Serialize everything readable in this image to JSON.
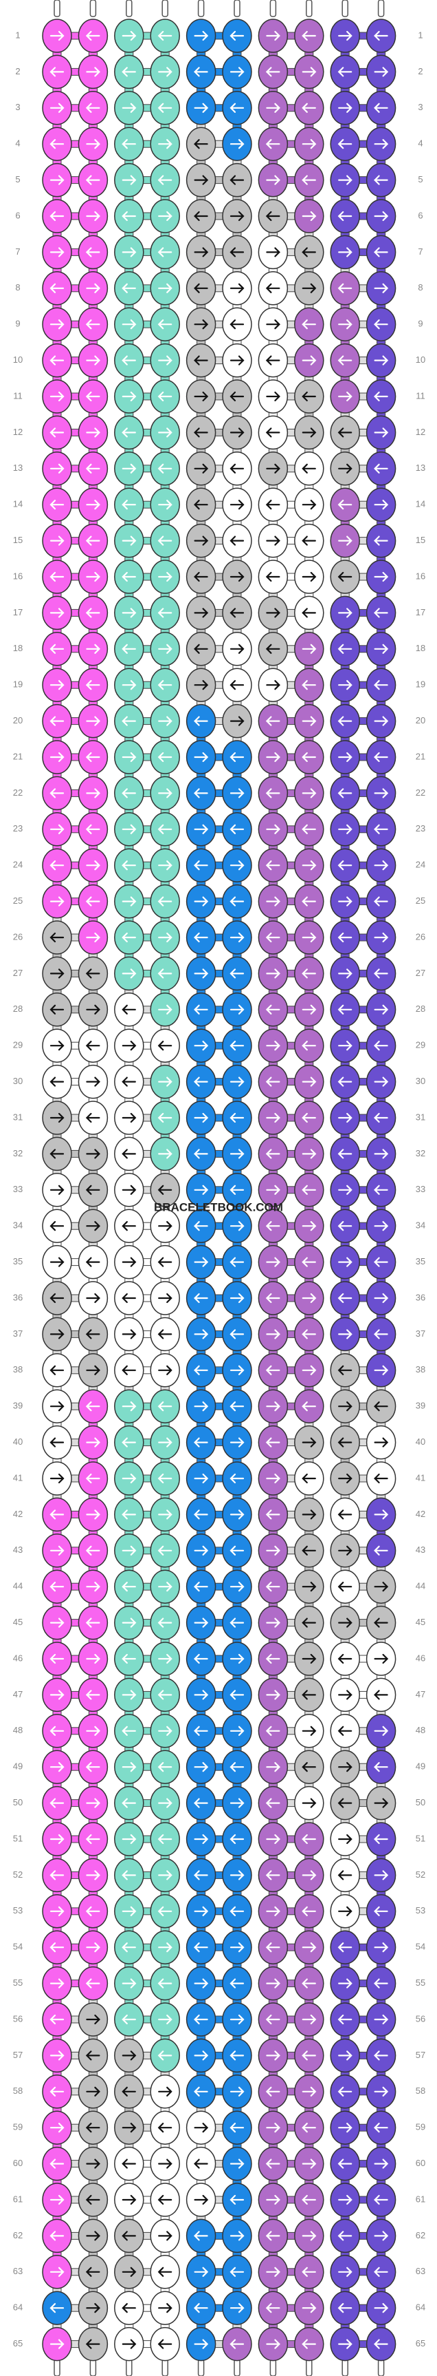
{
  "rows": [
    1,
    2,
    3,
    4,
    5,
    6,
    7,
    8,
    9,
    10,
    11,
    12,
    13,
    14,
    15,
    16,
    17,
    18,
    19,
    20,
    21,
    22,
    23,
    24,
    25,
    26,
    27,
    28,
    29,
    30,
    31,
    32,
    33,
    34,
    35,
    36,
    37,
    38,
    39,
    40,
    41,
    42,
    43,
    44,
    45,
    46,
    47,
    48,
    49,
    50,
    51,
    52,
    53,
    54,
    55,
    56,
    57,
    58,
    59,
    60,
    61,
    62,
    63,
    64,
    65
  ],
  "watermark": "BRACELETBOOK.COM",
  "knots": [
    "PPTTBBLLVV",
    "PPTTBBLLVV",
    "PPTTBBLLVV",
    "PPTTGBLLVV",
    "PPTTGGLLVV",
    "PPTTGGGLVV",
    "PPTTGGWGVV",
    "PPTTGWWGLV",
    "PPTTGWWLLV",
    "PPTTGWWLLV",
    "PPTTGGWGLV",
    "PPTTGGWGGV",
    "PPTTGWGWGV",
    "PPTTGWWWLV",
    "PPTTGWWWLV",
    "PPTTGGWWGV",
    "PPTTGGGWVV",
    "PPTTGWGLVV",
    "PPTTGWWLVV",
    "PPTTBGLLVV",
    "PPTTBBLLVV",
    "PPTTBBLLVV",
    "PPTTBBLLVV",
    "PPTTBBLLVV",
    "PPTTBBLLVV",
    "GPTTBBLLVV",
    "GGTTBBLLVV",
    "GGWTBBLLVV",
    "WWWWBBLLVV",
    "WWWTBBLLVV",
    "GWWTBBLLVV",
    "GGWTBBLLVV",
    "WGWGBBLLVV",
    "WGWWBBLLVV",
    "WWWWBBLLVV",
    "GWWWBBLLVV",
    "GGWWBBLLVV",
    "WGWWBBLLGV",
    "WPTTBBLLGG",
    "WPTTBBLGGW",
    "WPTTBBLWGW",
    "PPTTBBLGWV",
    "PPTTBBLGGV",
    "PPTTBBLGWG",
    "PPTTBBLGGG",
    "PPTTBBLGWW",
    "PPTTBBLGWW",
    "PPTTBBLWWV",
    "PPTTBBLGGV",
    "PPTTBBLWGG",
    "PPTTBBLLWV",
    "PPTTBBLLWV",
    "PPTTBBLLWV",
    "PPTTBBLLVV",
    "PPTTBBLLVV",
    "PGTTBBLLVV",
    "PGGTBBLLVV",
    "PGGWBBLLVV",
    "PGGWWBLLVV",
    "PGWWWBLLVV",
    "PGWWWBLLVV",
    "PGGWBBLLVV",
    "PGGWBBLLVV",
    "BGWWBBLLVV",
    "PGWWBLLLVV"
  ],
  "palette": {
    "P": "#f865f0",
    "T": "#7fdcc9",
    "B": "#1e88e5",
    "L": "#b06cc8",
    "V": "#6a4fd0",
    "G": "#c0c0c0",
    "W": "#ffffff"
  }
}
